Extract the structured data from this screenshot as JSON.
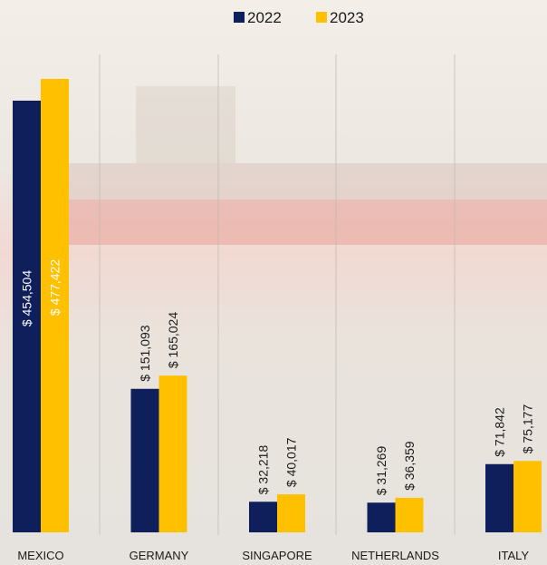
{
  "chart_data": {
    "type": "bar",
    "categories": [
      "MEXICO",
      "GERMANY",
      "SINGAPORE",
      "NETHERLANDS",
      "ITALY"
    ],
    "series": [
      {
        "name": "2022",
        "color": "#0e1f5b",
        "values": [
          454504,
          151093,
          32218,
          31269,
          71842
        ],
        "value_labels": [
          "$ 454,504",
          "$ 151,093",
          "$ 32,218",
          "$ 31,269",
          "$ 71,842"
        ]
      },
      {
        "name": "2023",
        "color": "#ffc000",
        "values": [
          477422,
          165024,
          40017,
          36359,
          75177
        ],
        "value_labels": [
          "$ 477,422",
          "$ 165,024",
          "$ 40,017",
          "$ 36,359",
          "$ 75,177"
        ]
      }
    ],
    "legend": "top"
  }
}
